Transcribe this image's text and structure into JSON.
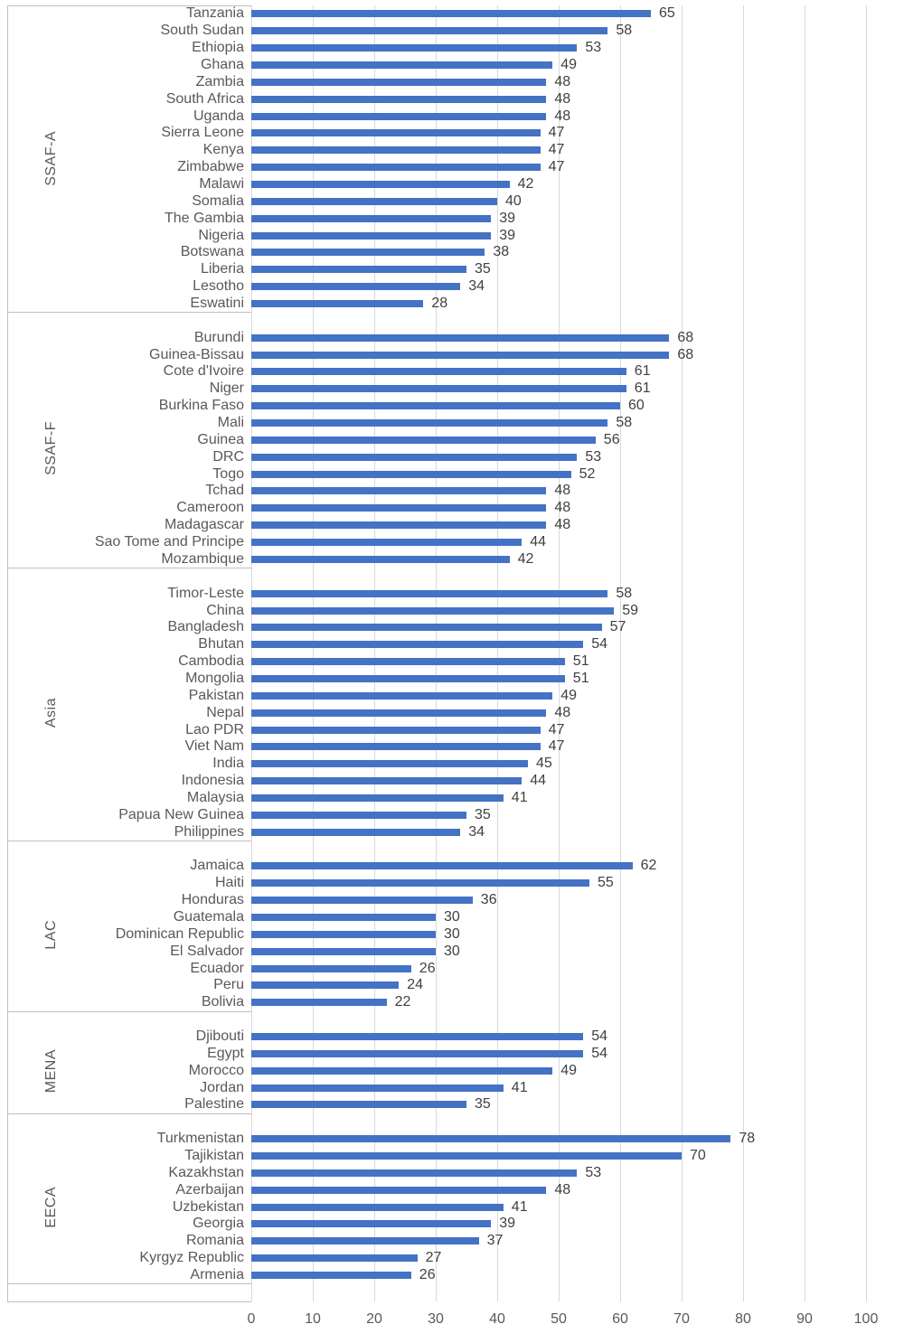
{
  "chart_data": {
    "type": "bar",
    "orientation": "horizontal",
    "title": "",
    "xlabel": "",
    "ylabel": "",
    "grid": true,
    "legend": false,
    "data_labels": true,
    "value_axis": {
      "min": 0,
      "max": 100,
      "ticks": [
        0,
        10,
        20,
        30,
        40,
        50,
        60,
        70,
        80,
        90,
        100
      ]
    },
    "colors": {
      "bar": "#4472C4",
      "gridline": "#D9D9D9",
      "category_line": "#BFBFBF",
      "category_text": "#595959",
      "value_text": "#404040",
      "tick_text": "#595959"
    },
    "groups": [
      {
        "label": "SSAF-A",
        "countries": [
          {
            "name": "Tanzania",
            "value": 65
          },
          {
            "name": "South Sudan",
            "value": 58
          },
          {
            "name": "Ethiopia",
            "value": 53
          },
          {
            "name": "Ghana",
            "value": 49
          },
          {
            "name": "Zambia",
            "value": 48
          },
          {
            "name": "South Africa",
            "value": 48
          },
          {
            "name": "Uganda",
            "value": 48
          },
          {
            "name": "Sierra Leone",
            "value": 47
          },
          {
            "name": "Kenya",
            "value": 47
          },
          {
            "name": "Zimbabwe",
            "value": 47
          },
          {
            "name": "Malawi",
            "value": 42
          },
          {
            "name": "Somalia",
            "value": 40
          },
          {
            "name": "The Gambia",
            "value": 39
          },
          {
            "name": "Nigeria",
            "value": 39
          },
          {
            "name": "Botswana",
            "value": 38
          },
          {
            "name": "Liberia",
            "value": 35
          },
          {
            "name": "Lesotho",
            "value": 34
          },
          {
            "name": "Eswatini",
            "value": 28
          }
        ]
      },
      {
        "label": "SSAF-F",
        "countries": [
          {
            "name": "Burundi",
            "value": 68
          },
          {
            "name": "Guinea-Bissau",
            "value": 68
          },
          {
            "name": "Cote d'Ivoire",
            "value": 61
          },
          {
            "name": "Niger",
            "value": 61
          },
          {
            "name": "Burkina Faso",
            "value": 60
          },
          {
            "name": "Mali",
            "value": 58
          },
          {
            "name": "Guinea",
            "value": 56
          },
          {
            "name": "DRC",
            "value": 53
          },
          {
            "name": "Togo",
            "value": 52
          },
          {
            "name": "Tchad",
            "value": 48
          },
          {
            "name": "Cameroon",
            "value": 48
          },
          {
            "name": "Madagascar",
            "value": 48
          },
          {
            "name": "Sao Tome and Principe",
            "value": 44
          },
          {
            "name": "Mozambique",
            "value": 42
          }
        ]
      },
      {
        "label": "Asia",
        "countries": [
          {
            "name": "Timor-Leste",
            "value": 58
          },
          {
            "name": "China",
            "value": 59
          },
          {
            "name": "Bangladesh",
            "value": 57
          },
          {
            "name": "Bhutan",
            "value": 54
          },
          {
            "name": "Cambodia",
            "value": 51
          },
          {
            "name": "Mongolia",
            "value": 51
          },
          {
            "name": "Pakistan",
            "value": 49
          },
          {
            "name": "Nepal",
            "value": 48
          },
          {
            "name": "Lao PDR",
            "value": 47
          },
          {
            "name": "Viet Nam",
            "value": 47
          },
          {
            "name": "India",
            "value": 45
          },
          {
            "name": "Indonesia",
            "value": 44
          },
          {
            "name": "Malaysia",
            "value": 41
          },
          {
            "name": "Papua New Guinea",
            "value": 35
          },
          {
            "name": "Philippines",
            "value": 34
          }
        ]
      },
      {
        "label": "LAC",
        "countries": [
          {
            "name": "Jamaica",
            "value": 62
          },
          {
            "name": "Haiti",
            "value": 55
          },
          {
            "name": "Honduras",
            "value": 36
          },
          {
            "name": "Guatemala",
            "value": 30
          },
          {
            "name": "Dominican Republic",
            "value": 30
          },
          {
            "name": "El Salvador",
            "value": 30
          },
          {
            "name": "Ecuador",
            "value": 26
          },
          {
            "name": "Peru",
            "value": 24
          },
          {
            "name": "Bolivia",
            "value": 22
          }
        ]
      },
      {
        "label": "MENA",
        "countries": [
          {
            "name": "Djibouti",
            "value": 54
          },
          {
            "name": "Egypt",
            "value": 54
          },
          {
            "name": "Morocco",
            "value": 49
          },
          {
            "name": "Jordan",
            "value": 41
          },
          {
            "name": "Palestine",
            "value": 35
          }
        ]
      },
      {
        "label": "EECA",
        "countries": [
          {
            "name": "Turkmenistan",
            "value": 78
          },
          {
            "name": "Tajikistan",
            "value": 70
          },
          {
            "name": "Kazakhstan",
            "value": 53
          },
          {
            "name": "Azerbaijan",
            "value": 48
          },
          {
            "name": "Uzbekistan",
            "value": 41
          },
          {
            "name": "Georgia",
            "value": 39
          },
          {
            "name": "Romania",
            "value": 37
          },
          {
            "name": "Kyrgyz Republic",
            "value": 27
          },
          {
            "name": "Armenia",
            "value": 26
          }
        ]
      }
    ]
  }
}
